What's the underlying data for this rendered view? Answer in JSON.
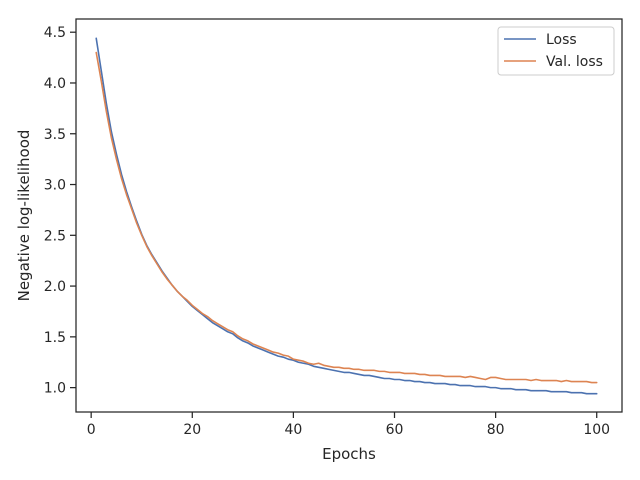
{
  "chart_data": {
    "type": "line",
    "title": "",
    "xlabel": "Epochs",
    "ylabel": "Negative log-likelihood",
    "xlim": [
      -3,
      105
    ],
    "ylim": [
      0.76,
      4.63
    ],
    "xticks": [
      0,
      20,
      40,
      60,
      80,
      100
    ],
    "yticks": [
      1.0,
      1.5,
      2.0,
      2.5,
      3.0,
      3.5,
      4.0,
      4.5
    ],
    "xtick_labels": [
      "0",
      "20",
      "40",
      "60",
      "80",
      "100"
    ],
    "ytick_labels": [
      "1.0",
      "1.5",
      "2.0",
      "2.5",
      "3.0",
      "3.5",
      "4.0",
      "4.5"
    ],
    "grid": false,
    "legend_position": "top-right",
    "x": [
      1,
      2,
      3,
      4,
      5,
      6,
      7,
      8,
      9,
      10,
      11,
      12,
      13,
      14,
      15,
      16,
      17,
      18,
      19,
      20,
      21,
      22,
      23,
      24,
      25,
      26,
      27,
      28,
      29,
      30,
      31,
      32,
      33,
      34,
      35,
      36,
      37,
      38,
      39,
      40,
      41,
      42,
      43,
      44,
      45,
      46,
      47,
      48,
      49,
      50,
      51,
      52,
      53,
      54,
      55,
      56,
      57,
      58,
      59,
      60,
      61,
      62,
      63,
      64,
      65,
      66,
      67,
      68,
      69,
      70,
      71,
      72,
      73,
      74,
      75,
      76,
      77,
      78,
      79,
      80,
      81,
      82,
      83,
      84,
      85,
      86,
      87,
      88,
      89,
      90,
      91,
      92,
      93,
      94,
      95,
      96,
      97,
      98,
      99,
      100
    ],
    "series": [
      {
        "name": "Loss",
        "color": "#4c72b0",
        "values": [
          4.44,
          4.12,
          3.8,
          3.52,
          3.3,
          3.1,
          2.93,
          2.78,
          2.64,
          2.51,
          2.4,
          2.31,
          2.23,
          2.15,
          2.08,
          2.01,
          1.95,
          1.9,
          1.85,
          1.8,
          1.76,
          1.72,
          1.68,
          1.64,
          1.61,
          1.58,
          1.55,
          1.53,
          1.49,
          1.46,
          1.44,
          1.41,
          1.39,
          1.37,
          1.35,
          1.33,
          1.31,
          1.3,
          1.28,
          1.27,
          1.25,
          1.24,
          1.23,
          1.21,
          1.2,
          1.19,
          1.18,
          1.17,
          1.16,
          1.15,
          1.15,
          1.14,
          1.13,
          1.12,
          1.12,
          1.11,
          1.1,
          1.09,
          1.09,
          1.08,
          1.08,
          1.07,
          1.07,
          1.06,
          1.06,
          1.05,
          1.05,
          1.04,
          1.04,
          1.04,
          1.03,
          1.03,
          1.02,
          1.02,
          1.02,
          1.01,
          1.01,
          1.01,
          1.0,
          1.0,
          0.99,
          0.99,
          0.99,
          0.98,
          0.98,
          0.98,
          0.97,
          0.97,
          0.97,
          0.97,
          0.96,
          0.96,
          0.96,
          0.96,
          0.95,
          0.95,
          0.95,
          0.94,
          0.94,
          0.94
        ]
      },
      {
        "name": "Val. loss",
        "color": "#dd8452",
        "values": [
          4.3,
          4.02,
          3.72,
          3.46,
          3.25,
          3.06,
          2.9,
          2.76,
          2.62,
          2.5,
          2.39,
          2.3,
          2.22,
          2.14,
          2.07,
          2.01,
          1.95,
          1.9,
          1.86,
          1.81,
          1.77,
          1.73,
          1.7,
          1.66,
          1.63,
          1.6,
          1.57,
          1.55,
          1.51,
          1.48,
          1.46,
          1.43,
          1.41,
          1.39,
          1.37,
          1.35,
          1.34,
          1.32,
          1.31,
          1.28,
          1.27,
          1.26,
          1.24,
          1.23,
          1.24,
          1.22,
          1.21,
          1.2,
          1.2,
          1.19,
          1.19,
          1.18,
          1.18,
          1.17,
          1.17,
          1.17,
          1.16,
          1.16,
          1.15,
          1.15,
          1.15,
          1.14,
          1.14,
          1.14,
          1.13,
          1.13,
          1.12,
          1.12,
          1.12,
          1.11,
          1.11,
          1.11,
          1.11,
          1.1,
          1.11,
          1.1,
          1.09,
          1.08,
          1.1,
          1.1,
          1.09,
          1.08,
          1.08,
          1.08,
          1.08,
          1.08,
          1.07,
          1.08,
          1.07,
          1.07,
          1.07,
          1.07,
          1.06,
          1.07,
          1.06,
          1.06,
          1.06,
          1.06,
          1.05,
          1.05
        ]
      }
    ]
  }
}
